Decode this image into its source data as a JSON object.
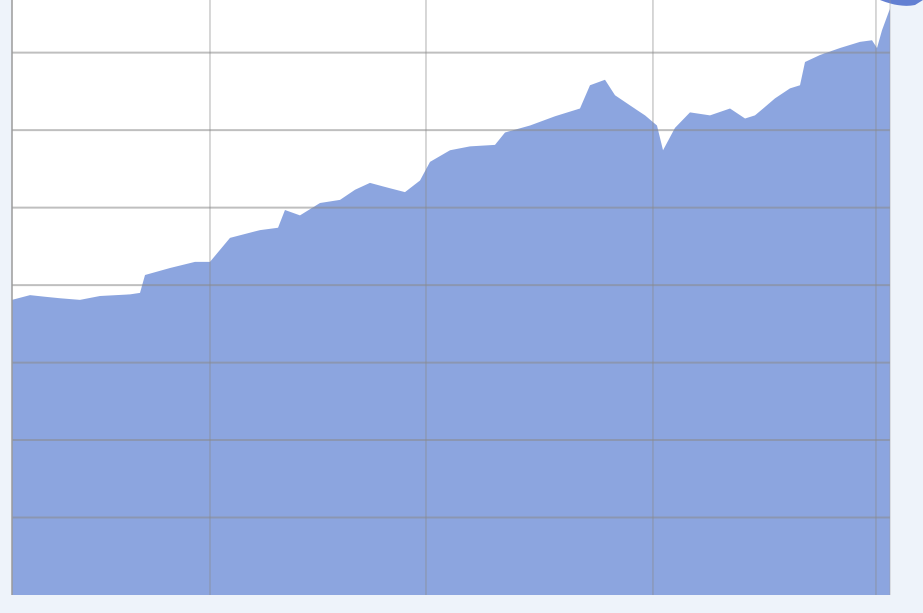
{
  "chart_data": {
    "type": "area",
    "color": "#8ca5df",
    "grid": true,
    "xlim": [
      0,
      100
    ],
    "xticks": [
      22.55,
      47.15,
      73.0,
      98.4
    ],
    "ylim": [
      0,
      7.68
    ],
    "yticks": [
      1,
      2,
      3,
      4,
      5,
      6,
      7
    ],
    "x": [
      0,
      2.05,
      3.76,
      5.47,
      7.74,
      10.02,
      13.44,
      14.58,
      15.15,
      18.0,
      20.84,
      22.55,
      24.83,
      28.25,
      30.3,
      31.09,
      32.8,
      35.08,
      37.36,
      39.07,
      40.77,
      43.05,
      44.76,
      46.47,
      47.61,
      49.89,
      52.16,
      55.01,
      56.15,
      59.0,
      61.85,
      64.69,
      65.83,
      67.54,
      68.68,
      70.39,
      72.1,
      73.46,
      74.15,
      75.51,
      77.22,
      79.5,
      81.78,
      83.49,
      84.62,
      86.9,
      88.61,
      89.75,
      90.32,
      92.03,
      94.31,
      96.58,
      97.95,
      98.52,
      99.09,
      100
    ],
    "values": [
      3.81,
      3.87,
      3.85,
      3.83,
      3.81,
      3.86,
      3.88,
      3.9,
      4.13,
      4.22,
      4.3,
      4.3,
      4.61,
      4.71,
      4.74,
      4.97,
      4.9,
      5.06,
      5.1,
      5.23,
      5.32,
      5.25,
      5.2,
      5.35,
      5.59,
      5.74,
      5.79,
      5.81,
      5.97,
      6.06,
      6.18,
      6.28,
      6.58,
      6.65,
      6.45,
      6.32,
      6.19,
      6.06,
      5.74,
      6.03,
      6.23,
      6.19,
      6.28,
      6.15,
      6.19,
      6.41,
      6.54,
      6.58,
      6.88,
      6.97,
      7.06,
      7.14,
      7.16,
      7.06,
      7.29,
      7.57
    ]
  }
}
